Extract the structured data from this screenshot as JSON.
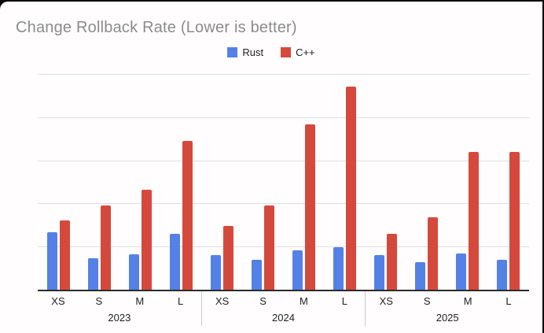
{
  "title": "Change Rollback Rate (Lower is better)",
  "colors": {
    "rust": "#5481e6",
    "cpp": "#d5493d",
    "title_text": "#8b8b8b",
    "axis_line": "#2b2b2b",
    "gridline": "#e0dde0",
    "card_background": "#fffdfd"
  },
  "chart_data": {
    "type": "bar",
    "title": "Change Rollback Rate (Lower is better)",
    "subtitle": "",
    "xlabel": "",
    "ylabel": "",
    "legend_position": "top",
    "grid": true,
    "y_axis_labels_visible": false,
    "ylim": [
      0,
      25
    ],
    "gridline_step": 5,
    "gridline_count": 6,
    "groups": [
      "2023",
      "2024",
      "2025"
    ],
    "categories": [
      "XS",
      "S",
      "M",
      "L"
    ],
    "series": [
      {
        "name": "Rust",
        "color": "#5481e6",
        "values": {
          "2023": [
            6.8,
            3.7,
            4.2,
            6.6
          ],
          "2024": [
            4.1,
            3.6,
            4.7,
            5.0
          ],
          "2025": [
            4.1,
            3.3,
            4.3,
            3.6
          ]
        }
      },
      {
        "name": "C++",
        "color": "#d5493d",
        "values": {
          "2023": [
            8.1,
            9.9,
            11.7,
            17.3
          ],
          "2024": [
            7.5,
            9.9,
            19.3,
            23.6
          ],
          "2025": [
            6.6,
            8.5,
            16.1,
            16.1
          ]
        }
      }
    ]
  }
}
